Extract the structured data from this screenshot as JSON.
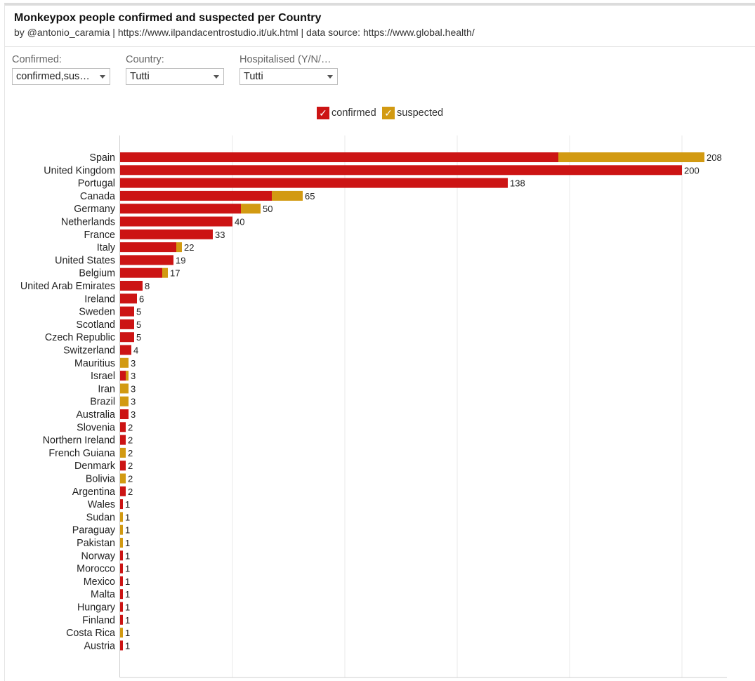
{
  "header": {
    "title": "Monkeypox people confirmed and suspected per Country",
    "subtitle": "by @antonio_caramia | https://www.ilpandacentrostudio.it/uk.html | data source: https://www.global.health/"
  },
  "filters": {
    "confirmed": {
      "label": "Confirmed:",
      "value": "confirmed,suspected"
    },
    "country": {
      "label": "Country:",
      "value": "Tutti"
    },
    "hospitalised": {
      "label": "Hospitalised (Y/N/…",
      "value": "Tutti"
    }
  },
  "legend": {
    "check_glyph": "✓",
    "items": [
      {
        "label": "confirmed",
        "color": "#cc1414"
      },
      {
        "label": "suspected",
        "color": "#d29a12"
      }
    ]
  },
  "chart_data": {
    "type": "bar",
    "orientation": "horizontal",
    "stacked": true,
    "title": "",
    "xlabel": "",
    "ylabel": "",
    "xlim": [
      0,
      215
    ],
    "grid": true,
    "legend_position": "top-center",
    "categories": [
      "Spain",
      "United Kingdom",
      "Portugal",
      "Canada",
      "Germany",
      "Netherlands",
      "France",
      "Italy",
      "United States",
      "Belgium",
      "United Arab Emirates",
      "Ireland",
      "Sweden",
      "Scotland",
      "Czech Republic",
      "Switzerland",
      "Mauritius",
      "Israel",
      "Iran",
      "Brazil",
      "Australia",
      "Slovenia",
      "Northern Ireland",
      "French Guiana",
      "Denmark",
      "Bolivia",
      "Argentina",
      "Wales",
      "Sudan",
      "Paraguay",
      "Pakistan",
      "Norway",
      "Morocco",
      "Mexico",
      "Malta",
      "Hungary",
      "Finland",
      "Costa Rica",
      "Austria"
    ],
    "series": [
      {
        "name": "confirmed",
        "color": "#cc1414",
        "values": [
          156,
          200,
          138,
          54,
          43,
          40,
          33,
          20,
          19,
          15,
          8,
          6,
          5,
          5,
          5,
          4,
          0,
          2,
          0,
          0,
          3,
          2,
          2,
          0,
          2,
          0,
          2,
          1,
          0,
          0,
          0,
          1,
          1,
          1,
          1,
          1,
          1,
          0,
          1
        ]
      },
      {
        "name": "suspected",
        "color": "#d29a12",
        "values": [
          52,
          0,
          0,
          11,
          7,
          0,
          0,
          2,
          0,
          2,
          0,
          0,
          0,
          0,
          0,
          0,
          3,
          1,
          3,
          3,
          0,
          0,
          0,
          2,
          0,
          2,
          0,
          0,
          1,
          1,
          1,
          0,
          0,
          0,
          0,
          0,
          0,
          1,
          0
        ]
      }
    ],
    "totals": [
      208,
      200,
      138,
      65,
      50,
      40,
      33,
      22,
      19,
      17,
      8,
      6,
      5,
      5,
      5,
      4,
      3,
      3,
      3,
      3,
      3,
      2,
      2,
      2,
      2,
      2,
      2,
      1,
      1,
      1,
      1,
      1,
      1,
      1,
      1,
      1,
      1,
      1,
      1
    ]
  }
}
